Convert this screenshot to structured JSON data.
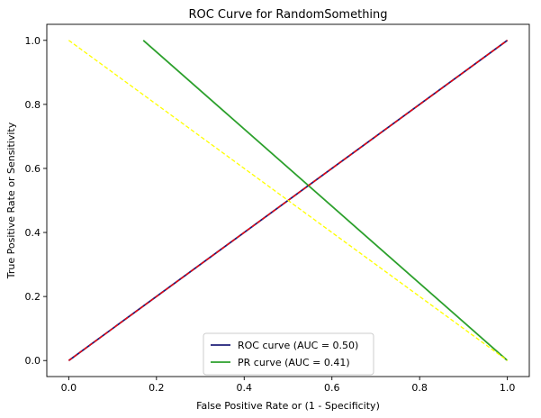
{
  "chart_data": {
    "type": "line",
    "title": "ROC Curve for RandomSomething",
    "xlabel": "False Positive Rate or (1 - Specificity)",
    "ylabel": "True Positive Rate or Sensitivity",
    "xlim": [
      -0.05,
      1.05
    ],
    "ylim": [
      -0.05,
      1.05
    ],
    "xticks": [
      "0.0",
      "0.2",
      "0.4",
      "0.6",
      "0.8",
      "1.0"
    ],
    "yticks": [
      "0.0",
      "0.2",
      "0.4",
      "0.6",
      "0.8",
      "1.0"
    ],
    "grid": false,
    "legend_position": "lower-center",
    "series": [
      {
        "name": "ROC curve (AUC = 0.50)",
        "color": "#1f1f7a",
        "style": "solid",
        "in_legend": true,
        "x": [
          0.0,
          1.0
        ],
        "y": [
          0.0,
          1.0
        ]
      },
      {
        "name": "PR curve (AUC = 0.41)",
        "color": "#2ca02c",
        "style": "solid",
        "in_legend": true,
        "x": [
          0.17,
          1.0
        ],
        "y": [
          1.0,
          0.0
        ]
      },
      {
        "color": "#ff0000",
        "style": "dashed",
        "in_legend": false,
        "x": [
          0.0,
          1.0
        ],
        "y": [
          0.0,
          1.0
        ]
      },
      {
        "color": "#ffff00",
        "style": "dashed",
        "in_legend": false,
        "x": [
          0.0,
          1.0
        ],
        "y": [
          1.0,
          0.0
        ]
      }
    ]
  }
}
